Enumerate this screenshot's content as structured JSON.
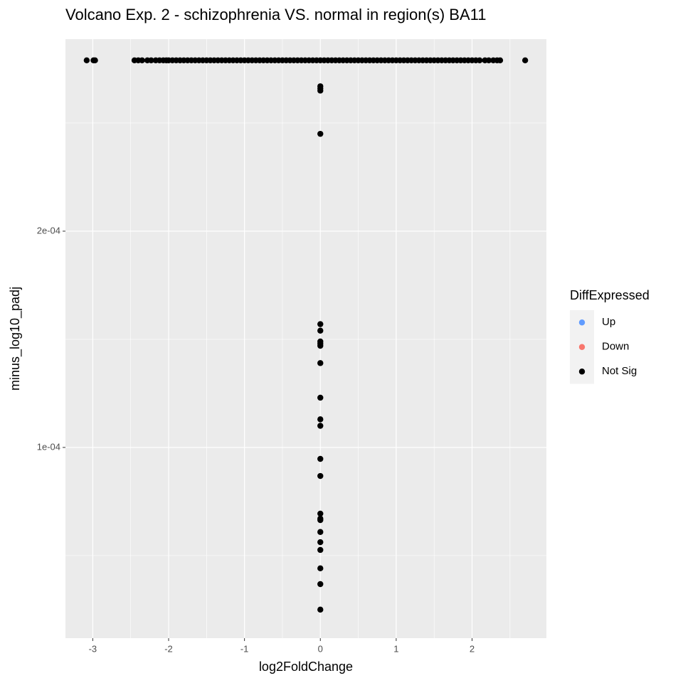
{
  "chart_data": {
    "type": "scatter",
    "title": "Volcano Exp. 2 - schizophrenia VS. normal in region(s) BA11",
    "x_label": "log2FoldChange",
    "y_label": "minus_log10_padj",
    "legend_title": "DiffExpressed",
    "legend_position": "right",
    "grid": true,
    "xlim": [
      -3.36,
      2.98
    ],
    "ylim": [
      1.18e-05,
      0.0002888
    ],
    "xticks": [
      -3,
      -2,
      -1,
      0,
      1,
      2
    ],
    "yticks": [
      {
        "value": 0.0001,
        "label": "1e-04"
      },
      {
        "value": 0.0002,
        "label": "2e-04"
      }
    ],
    "series": [
      {
        "name": "Up",
        "color": "#619CFF",
        "x": [],
        "values": []
      },
      {
        "name": "Down",
        "color": "#F8766D",
        "x": [],
        "values": []
      },
      {
        "name": "Not Sig",
        "color": "#000000",
        "x": [
          -3.08,
          -2.99,
          -2.97,
          -2.45,
          -2.4,
          -2.35,
          -2.28,
          -2.23,
          -2.17,
          -2.12,
          -2.07,
          -2.03,
          -2,
          -1.95,
          -1.9,
          -1.85,
          -1.8,
          -1.75,
          -1.7,
          -1.65,
          -1.6,
          -1.55,
          -1.5,
          -1.45,
          -1.4,
          -1.35,
          -1.3,
          -1.25,
          -1.2,
          -1.15,
          -1.1,
          -1.05,
          -1,
          -0.95,
          -0.9,
          -0.85,
          -0.8,
          -0.75,
          -0.7,
          -0.65,
          -0.6,
          -0.55,
          -0.5,
          -0.45,
          -0.4,
          -0.35,
          -0.3,
          -0.25,
          -0.2,
          -0.15,
          -0.1,
          -0.05,
          0,
          0.05,
          0.1,
          0.15,
          0.2,
          0.25,
          0.3,
          0.35,
          0.4,
          0.45,
          0.5,
          0.55,
          0.6,
          0.65,
          0.7,
          0.75,
          0.8,
          0.85,
          0.9,
          0.95,
          1,
          1.05,
          1.1,
          1.15,
          1.2,
          1.25,
          1.3,
          1.35,
          1.4,
          1.45,
          1.5,
          1.55,
          1.6,
          1.65,
          1.7,
          1.75,
          1.8,
          1.85,
          1.9,
          1.95,
          2,
          2.05,
          2.1,
          2.17,
          2.22,
          2.28,
          2.33,
          2.37,
          2.7,
          0,
          0,
          0,
          0,
          0,
          0,
          0,
          0,
          0,
          0,
          0,
          0,
          0,
          0,
          0,
          0,
          0,
          0,
          0,
          0,
          0,
          0,
          0,
          0
        ],
        "values": [
          0.000279,
          0.000279,
          0.000279,
          0.000279,
          0.000279,
          0.000279,
          0.000279,
          0.000279,
          0.000279,
          0.000279,
          0.000279,
          0.000279,
          0.000279,
          0.000279,
          0.000279,
          0.000279,
          0.000279,
          0.000279,
          0.000279,
          0.000279,
          0.000279,
          0.000279,
          0.000279,
          0.000279,
          0.000279,
          0.000279,
          0.000279,
          0.000279,
          0.000279,
          0.000279,
          0.000279,
          0.000279,
          0.000279,
          0.000279,
          0.000279,
          0.000279,
          0.000279,
          0.000279,
          0.000279,
          0.000279,
          0.000279,
          0.000279,
          0.000279,
          0.000279,
          0.000279,
          0.000279,
          0.000279,
          0.000279,
          0.000279,
          0.000279,
          0.000279,
          0.000279,
          0.000279,
          0.000279,
          0.000279,
          0.000279,
          0.000279,
          0.000279,
          0.000279,
          0.000279,
          0.000279,
          0.000279,
          0.000279,
          0.000279,
          0.000279,
          0.000279,
          0.000279,
          0.000279,
          0.000279,
          0.000279,
          0.000279,
          0.000279,
          0.000279,
          0.000279,
          0.000279,
          0.000279,
          0.000279,
          0.000279,
          0.000279,
          0.000279,
          0.000279,
          0.000279,
          0.000279,
          0.000279,
          0.000279,
          0.000279,
          0.000279,
          0.000279,
          0.000279,
          0.000279,
          0.000279,
          0.000279,
          0.000279,
          0.000279,
          0.000279,
          0.000279,
          0.000279,
          0.000279,
          0.000279,
          0.000279,
          0.000279,
          0.000267,
          0.000266,
          0.000265,
          0.000245,
          0.000157,
          0.000154,
          0.000149,
          0.000148,
          0.000147,
          0.000139,
          0.000123,
          0.000113,
          0.00011,
          9.47e-05,
          8.68e-05,
          6.94e-05,
          6.71e-05,
          6.64e-05,
          6.09e-05,
          5.62e-05,
          5.26e-05,
          4.41e-05,
          3.68e-05,
          2.5e-05
        ]
      }
    ]
  }
}
